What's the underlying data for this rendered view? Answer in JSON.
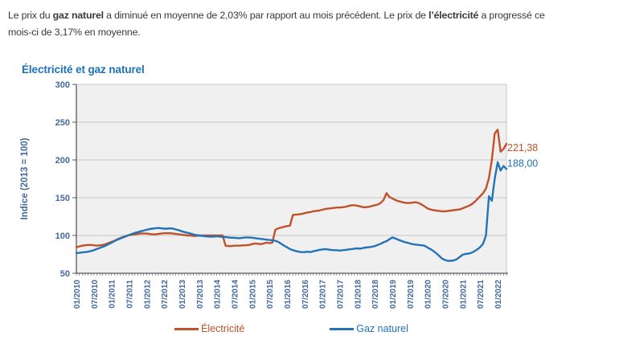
{
  "intro": {
    "part1": "Le prix du ",
    "bold1": "gaz naturel",
    "part2": " a diminué en moyenne de 2,03% par rapport au mois précédent. Le prix de ",
    "bold2": "l’électricité",
    "part3": " a progressé ce",
    "line2": "mois-ci de 3,17% en moyenne."
  },
  "chart_data": {
    "type": "line",
    "title": "Électricité et gaz naturel",
    "ylabel": "Indice (2013 = 100)",
    "ylim": [
      50,
      300
    ],
    "yticks": [
      300,
      250,
      200,
      150,
      100,
      50
    ],
    "grid": true,
    "legend_position": "bottom",
    "x_frequency": "monthly",
    "x_tick_every": 6,
    "x_tick_labels": [
      "01/2010",
      "07/2010",
      "01/2011",
      "07/2011",
      "01/2012",
      "07/2012",
      "01/2013",
      "07/2013",
      "01/2014",
      "07/2014",
      "01/2015",
      "07/2015",
      "01/2016",
      "07/2016",
      "01/2017",
      "07/2017",
      "01/2018",
      "07/2018",
      "01/2019",
      "07/2019",
      "01/2020",
      "07/2020",
      "01/2021",
      "07/2021",
      "01/2022"
    ],
    "style": {
      "title_color": "#1b72b8",
      "axis_text_color": "#44689e",
      "grid_color": "#c6c6c6",
      "plot_bg": "#f0f0f0",
      "axis_line_color": "#595959",
      "intro_text_color": "#3a3a3a"
    },
    "series": [
      {
        "name": "Électricité",
        "color": "#c0522b",
        "end_label": "221,38",
        "values": [
          84.5,
          85.5,
          86.5,
          87,
          87.5,
          87.5,
          87,
          86.5,
          87,
          87.5,
          88.5,
          90,
          91.5,
          93,
          95,
          96.5,
          98,
          99.5,
          100.5,
          101,
          101.5,
          102,
          102.5,
          102.5,
          102.5,
          102,
          101.5,
          101.5,
          102,
          102.5,
          103,
          103,
          103,
          102.5,
          102,
          101.5,
          101,
          100.5,
          100,
          100,
          99.5,
          99.5,
          100,
          100,
          100,
          100,
          100,
          100,
          100,
          100,
          100,
          86.5,
          86,
          86,
          86.5,
          86.5,
          86.5,
          87,
          87,
          87.5,
          88.5,
          89.5,
          89,
          88.5,
          89.5,
          90.5,
          90,
          90.5,
          107.5,
          109.5,
          110.5,
          111.5,
          112.5,
          113,
          127,
          127.5,
          128,
          128.5,
          129.5,
          130.5,
          131,
          132,
          132.5,
          133,
          134,
          135,
          135.5,
          136,
          136.5,
          137,
          137,
          137.5,
          138,
          139,
          140,
          140,
          139.5,
          138.5,
          137.5,
          137.5,
          138,
          139,
          140,
          141,
          143,
          147,
          156,
          151,
          149,
          147,
          145.5,
          144.5,
          143.5,
          143,
          143,
          143.5,
          144,
          143,
          141,
          138.5,
          136,
          134.5,
          133.5,
          133,
          132.5,
          132,
          132,
          132.5,
          133,
          133.5,
          134,
          134.5,
          136,
          137.5,
          139,
          141,
          144,
          148,
          152,
          156,
          162,
          176,
          200,
          235,
          240,
          211,
          214.58,
          221.38
        ]
      },
      {
        "name": "Gaz naturel",
        "color": "#2273b8",
        "end_label": "188,00",
        "values": [
          76.5,
          77,
          77.5,
          78,
          78.5,
          79.5,
          80.5,
          82,
          83.5,
          85,
          86.5,
          88.5,
          90.5,
          92.5,
          94.5,
          96,
          97.5,
          99,
          100.5,
          102,
          103.5,
          104.5,
          105.5,
          106.5,
          107.5,
          108.5,
          109,
          109.5,
          110,
          109.5,
          109,
          109,
          109.5,
          109,
          108,
          107,
          105.5,
          104.5,
          103.5,
          102.5,
          101.5,
          100.5,
          100,
          99.5,
          99,
          98.5,
          98.5,
          98.5,
          99,
          98.5,
          98,
          98,
          97.5,
          97,
          97,
          96.5,
          96.5,
          97,
          97.5,
          97.5,
          97,
          96.5,
          96,
          95.5,
          95,
          94.5,
          94,
          93.5,
          93,
          91.5,
          89,
          86.5,
          84.5,
          82,
          80.5,
          79.5,
          78.5,
          78,
          78,
          78.5,
          78,
          79,
          80,
          81,
          81.5,
          82,
          81.5,
          81,
          80.5,
          80.5,
          80,
          80.5,
          81,
          81.5,
          82,
          82.5,
          83,
          82.5,
          83.5,
          84,
          84.5,
          85,
          86,
          87.5,
          89,
          91,
          92.5,
          95,
          97.5,
          96,
          94.5,
          93,
          91.5,
          90.5,
          89.5,
          88.5,
          88,
          87.5,
          87,
          86.5,
          84,
          82,
          79.5,
          76.5,
          73,
          69.5,
          67.5,
          66.5,
          66.5,
          67,
          68.5,
          71.5,
          74.5,
          75.5,
          76,
          77,
          79,
          81.5,
          84.5,
          89,
          100,
          152,
          146,
          175,
          197,
          186,
          191.9,
          188
        ]
      }
    ]
  }
}
